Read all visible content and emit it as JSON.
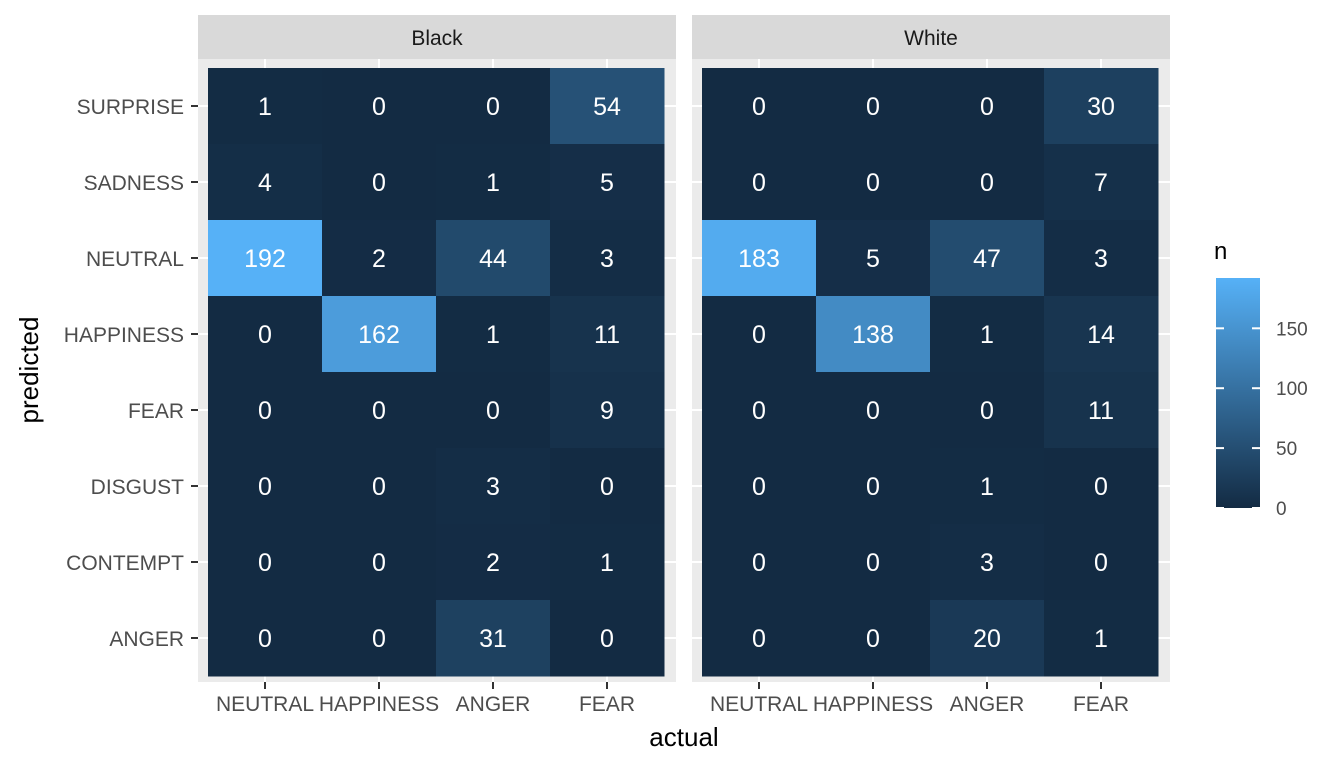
{
  "chart_data": {
    "type": "heatmap",
    "facets": [
      "Black",
      "White"
    ],
    "x_categories": [
      "NEUTRAL",
      "HAPPINESS",
      "ANGER",
      "FEAR"
    ],
    "y_categories": [
      "SURPRISE",
      "SADNESS",
      "NEUTRAL",
      "HAPPINESS",
      "FEAR",
      "DISGUST",
      "CONTEMPT",
      "ANGER"
    ],
    "xlabel": "actual",
    "ylabel": "predicted",
    "values": {
      "Black": [
        [
          1,
          0,
          0,
          54
        ],
        [
          4,
          0,
          1,
          5
        ],
        [
          192,
          2,
          44,
          3
        ],
        [
          0,
          162,
          1,
          11
        ],
        [
          0,
          0,
          0,
          9
        ],
        [
          0,
          0,
          3,
          0
        ],
        [
          0,
          0,
          2,
          1
        ],
        [
          0,
          0,
          31,
          0
        ]
      ],
      "White": [
        [
          0,
          0,
          0,
          30
        ],
        [
          0,
          0,
          0,
          7
        ],
        [
          183,
          5,
          47,
          3
        ],
        [
          0,
          138,
          1,
          14
        ],
        [
          0,
          0,
          0,
          11
        ],
        [
          0,
          0,
          1,
          0
        ],
        [
          0,
          0,
          3,
          0
        ],
        [
          0,
          0,
          20,
          1
        ]
      ]
    },
    "legend": {
      "title": "n",
      "ticks": [
        0,
        50,
        100,
        150
      ],
      "range": [
        0,
        192
      ],
      "color_low": "#132B43",
      "color_high": "#56B1F7",
      "placement": "right"
    },
    "colors": {
      "panel_background": "#EBEBEB",
      "strip_background": "#D9D9D9",
      "grid": "#FFFFFF"
    },
    "grid": true
  }
}
